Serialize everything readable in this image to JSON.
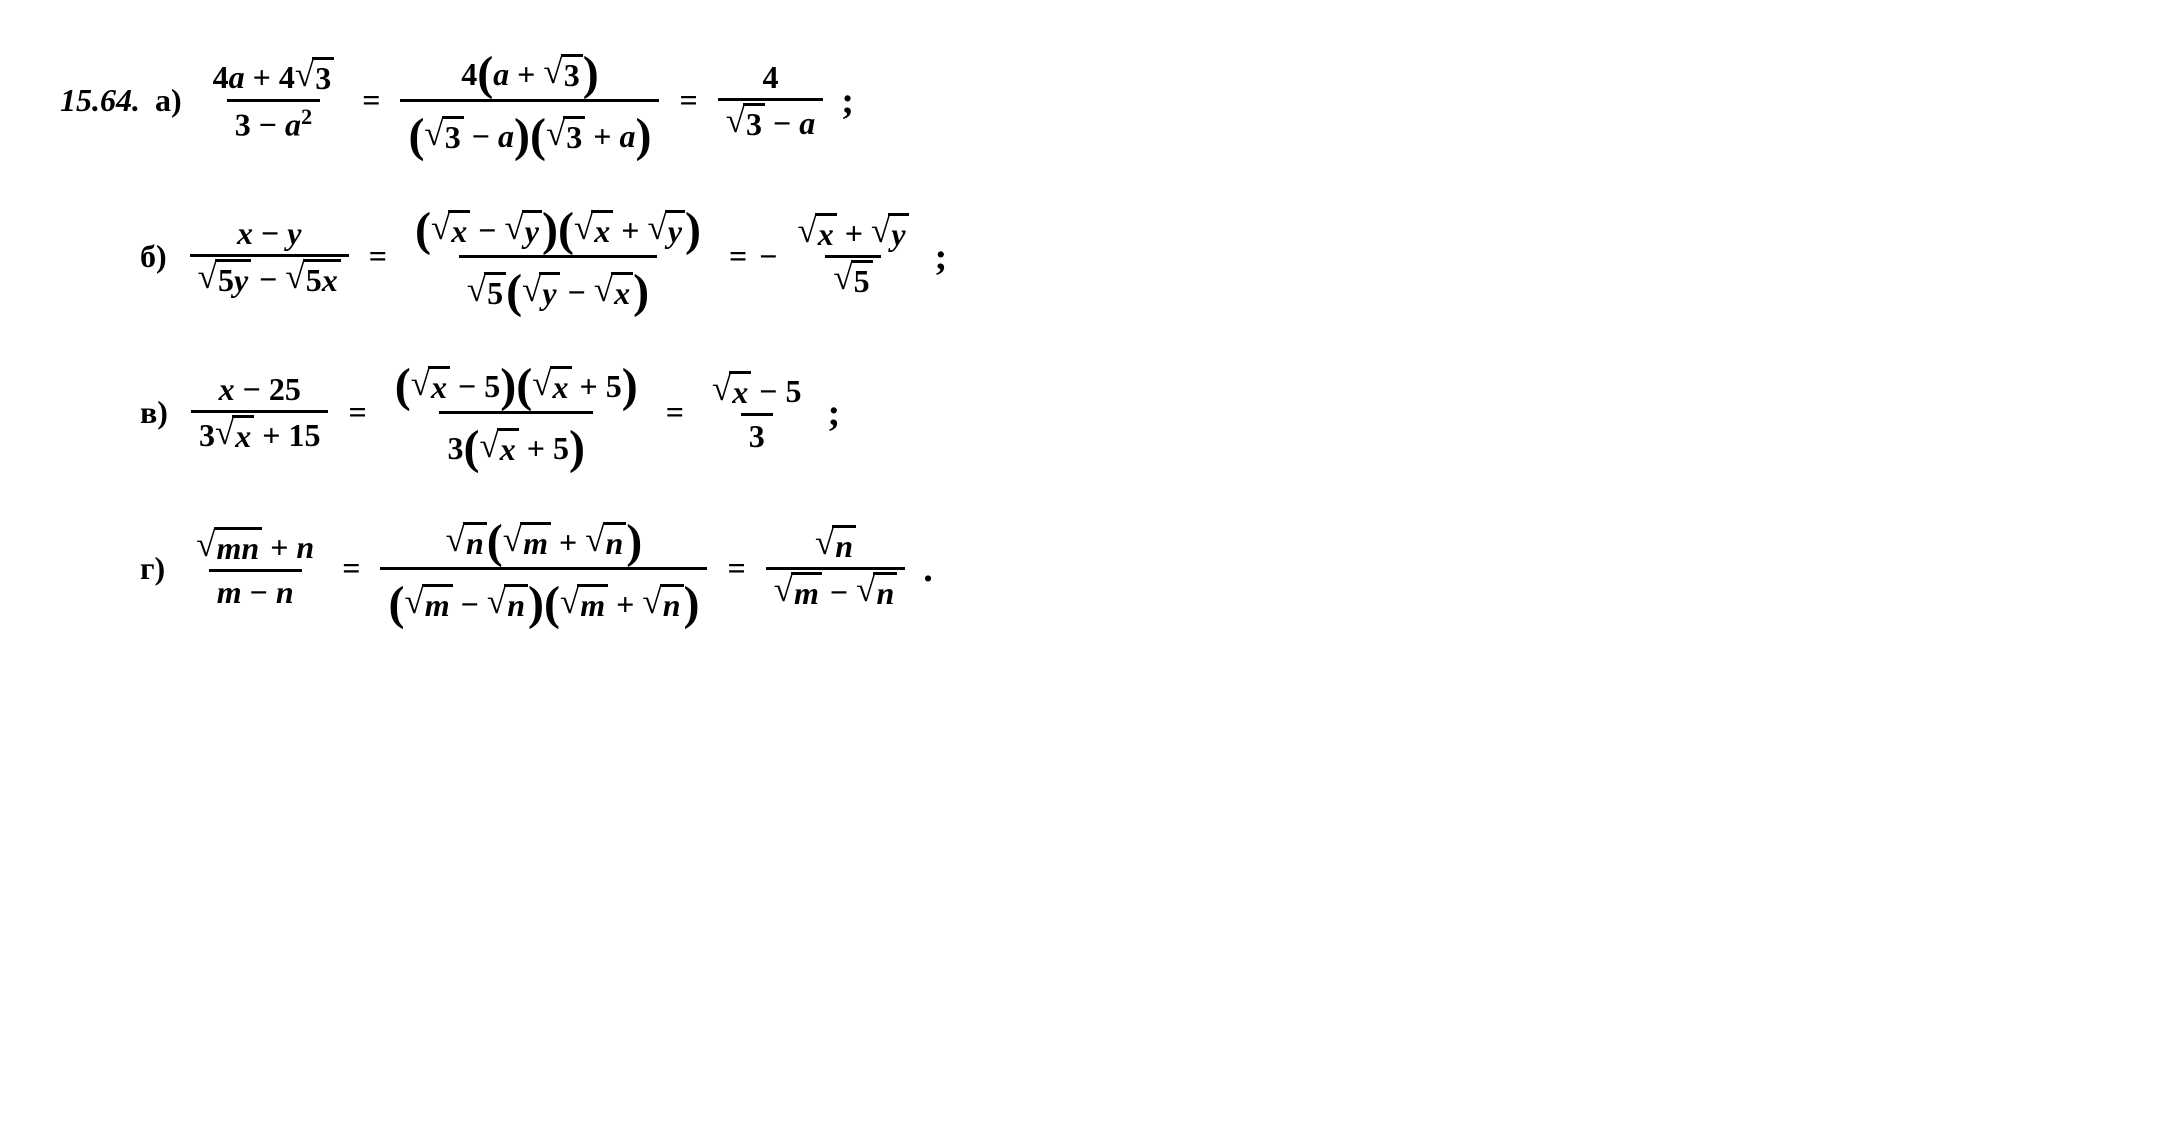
{
  "problem_number": "15.64.",
  "parts": {
    "a": {
      "label": "а)",
      "step1": {
        "numerator": "4a + 4√3",
        "num_parts": [
          "4",
          "a",
          " + 4",
          "√",
          "3"
        ],
        "denominator": "3 − a²",
        "den_parts": [
          "3 − ",
          "a",
          "2"
        ]
      },
      "step2": {
        "numerator": "4(a + √3)",
        "num_parts": [
          "4",
          "(",
          "a",
          " + ",
          "√",
          "3",
          ")"
        ],
        "denominator": "(√3 − a)(√3 + a)",
        "den_parts": [
          "(",
          "√",
          "3",
          " − ",
          "a",
          ")",
          "(",
          "√",
          "3",
          " + ",
          "a",
          ")"
        ]
      },
      "step3": {
        "numerator": "4",
        "denominator": "√3 − a",
        "den_parts": [
          "√",
          "3",
          " − ",
          "a"
        ]
      }
    },
    "b": {
      "label": "б)",
      "step1": {
        "numerator": "x − y",
        "num_parts": [
          "x",
          " − ",
          "y"
        ],
        "denominator": "√5y − √5x",
        "den_parts": [
          "√",
          "5",
          "y",
          " − ",
          "√",
          "5",
          "x"
        ]
      },
      "step2": {
        "numerator": "(√x − √y)(√x + √y)",
        "num_parts": [
          "(",
          "√",
          "x",
          " − ",
          "√",
          "y",
          ")",
          "(",
          "√",
          "x",
          " + ",
          "√",
          "y",
          ")"
        ],
        "denominator": "√5(√y − √x)",
        "den_parts": [
          "√",
          "5",
          "(",
          "√",
          "y",
          " − ",
          "√",
          "x",
          ")"
        ]
      },
      "step3": {
        "prefix": "−",
        "numerator": "√x + √y",
        "num_parts": [
          "√",
          "x",
          " + ",
          "√",
          "y"
        ],
        "denominator": "√5",
        "den_parts": [
          "√",
          "5"
        ]
      }
    },
    "c": {
      "label": "в)",
      "step1": {
        "numerator": "x − 25",
        "num_parts": [
          "x",
          " − 25"
        ],
        "denominator": "3√x + 15",
        "den_parts": [
          "3",
          "√",
          "x",
          " + 15"
        ]
      },
      "step2": {
        "numerator": "(√x − 5)(√x + 5)",
        "num_parts": [
          "(",
          "√",
          "x",
          " − 5",
          ")",
          "(",
          "√",
          "x",
          " + 5",
          ")"
        ],
        "denominator": "3(√x + 5)",
        "den_parts": [
          "3",
          "(",
          "√",
          "x",
          " + 5",
          ")"
        ]
      },
      "step3": {
        "numerator": "√x − 5",
        "num_parts": [
          "√",
          "x",
          " − 5"
        ],
        "denominator": "3"
      }
    },
    "d": {
      "label": "г)",
      "step1": {
        "numerator": "√mn + n",
        "num_parts": [
          "√",
          "mn",
          " + ",
          "n"
        ],
        "denominator": "m − n",
        "den_parts": [
          "m",
          " − ",
          "n"
        ]
      },
      "step2": {
        "numerator": "√n(√m + √n)",
        "num_parts": [
          "√",
          "n",
          "(",
          "√",
          "m",
          " + ",
          "√",
          "n",
          ")"
        ],
        "denominator": "(√m − √n)(√m + √n)",
        "den_parts": [
          "(",
          "√",
          "m",
          " − ",
          "√",
          "n",
          ")",
          "(",
          "√",
          "m",
          " + ",
          "√",
          "n",
          ")"
        ]
      },
      "step3": {
        "numerator": "√n",
        "num_parts": [
          "√",
          "n"
        ],
        "denominator": "√m − √n",
        "den_parts": [
          "√",
          "m",
          " − ",
          "√",
          "n"
        ]
      }
    }
  },
  "symbols": {
    "equals": "=",
    "semicolon": ";",
    "period": ".",
    "minus": "−",
    "plus": "+",
    "sqrt": "√"
  },
  "colors": {
    "text": "#000000",
    "background": "#ffffff"
  },
  "fonts": {
    "family": "Times New Roman, serif",
    "base_size": 32,
    "weight": "bold"
  }
}
